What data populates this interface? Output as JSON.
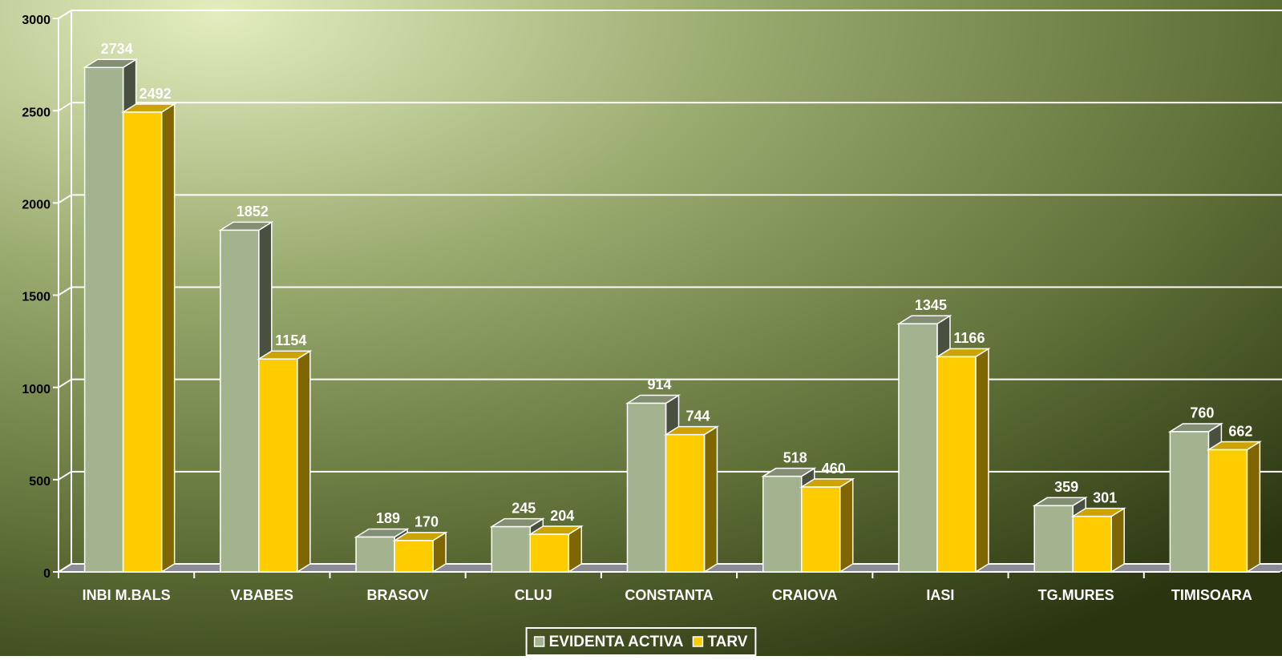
{
  "chart_data": {
    "type": "bar3d",
    "categories": [
      "INBI M.BALS",
      "V.BABES",
      "BRASOV",
      "CLUJ",
      "CONSTANTA",
      "CRAIOVA",
      "IASI",
      "TG.MURES",
      "TIMISOARA"
    ],
    "series": [
      {
        "name": "EVIDENTA ACTIVA",
        "color": "#a3b38f",
        "values": [
          2734,
          1852,
          189,
          245,
          914,
          518,
          1345,
          359,
          760
        ]
      },
      {
        "name": "TARV",
        "color": "#ffcc00",
        "values": [
          2492,
          1154,
          170,
          204,
          744,
          460,
          1166,
          301,
          662
        ]
      }
    ],
    "ylim": [
      0,
      3000
    ],
    "yticks": [
      0,
      500,
      1000,
      1500,
      2000,
      2500,
      3000
    ],
    "grid": true,
    "legend": "bottom"
  }
}
